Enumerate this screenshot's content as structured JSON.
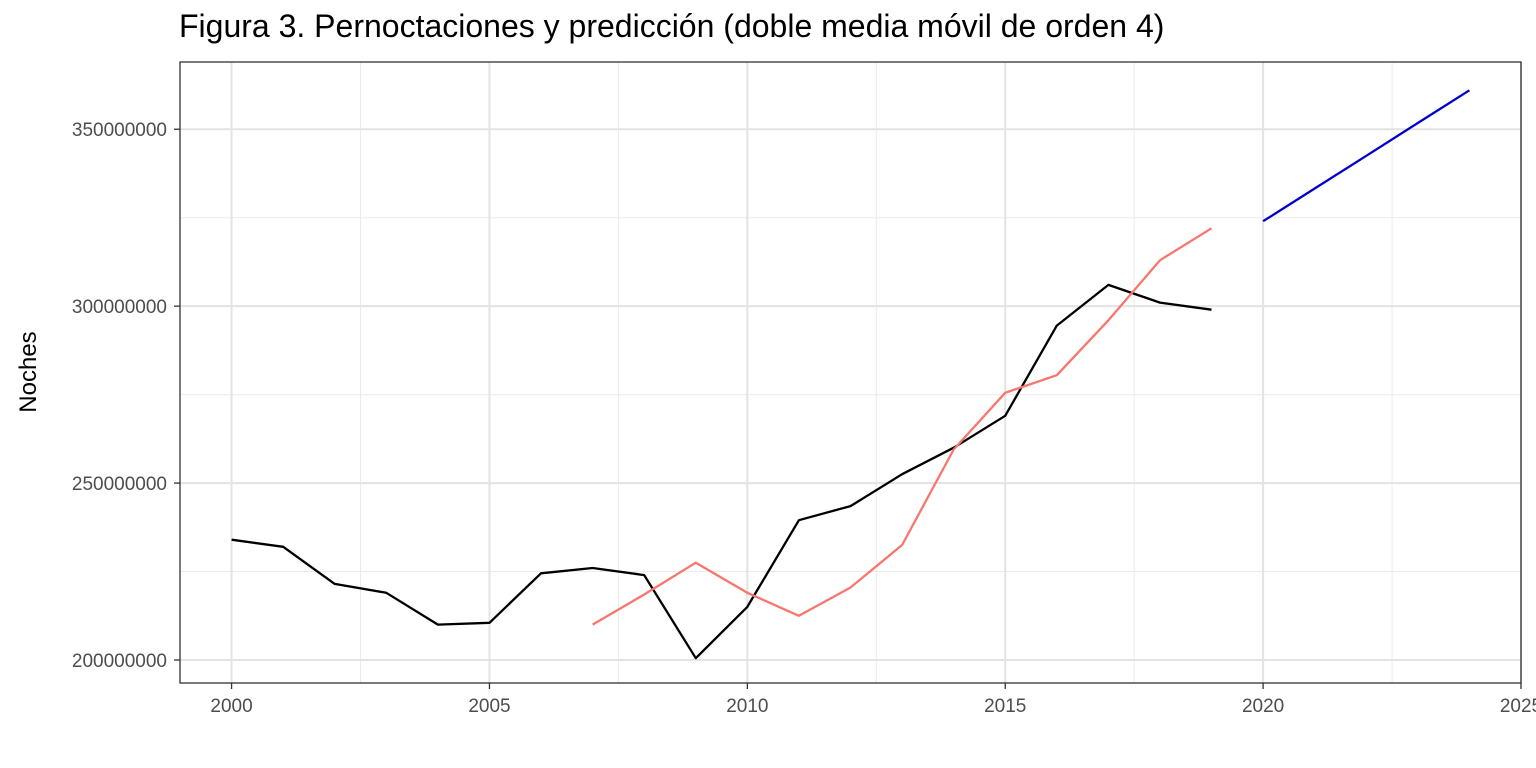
{
  "chart_data": {
    "type": "line",
    "title": "Figura 3. Pernoctaciones y predicción (doble media móvil de orden 4)",
    "xlabel": "",
    "ylabel": "Noches",
    "xlim": [
      1999,
      2025
    ],
    "ylim": [
      193500000,
      369000000
    ],
    "x_ticks": [
      2000,
      2005,
      2010,
      2015,
      2020,
      2025
    ],
    "y_ticks": [
      200000000,
      250000000,
      300000000,
      350000000
    ],
    "x_tick_labels": [
      "2000",
      "2005",
      "2010",
      "2015",
      "2020",
      "2025"
    ],
    "y_tick_labels": [
      "200000000",
      "250000000",
      "300000000",
      "350000000"
    ],
    "grid": true,
    "legend": "none",
    "series": [
      {
        "color": "#000000",
        "x": [
          2000,
          2001,
          2002,
          2003,
          2004,
          2005,
          2006,
          2007,
          2008,
          2009,
          2010,
          2011,
          2012,
          2013,
          2014,
          2015,
          2016,
          2017,
          2018,
          2019
        ],
        "values": [
          234000000,
          232000000,
          221500000,
          219000000,
          210000000,
          210500000,
          224500000,
          226000000,
          224000000,
          200500000,
          215000000,
          239500000,
          243500000,
          252500000,
          260000000,
          269000000,
          294500000,
          306000000,
          301000000,
          299000000
        ]
      },
      {
        "color": "#f8766d",
        "x": [
          2007,
          2008,
          2009,
          2010,
          2011,
          2012,
          2013,
          2014,
          2015,
          2016,
          2017,
          2018,
          2019
        ],
        "values": [
          210000000,
          218500000,
          227500000,
          219000000,
          212500000,
          220500000,
          232500000,
          259500000,
          275500000,
          280500000,
          296000000,
          313000000,
          322000000
        ]
      },
      {
        "color": "#0000cd",
        "x": [
          2020,
          2021,
          2022,
          2023,
          2024
        ],
        "values": [
          324000000,
          333250000,
          342500000,
          351750000,
          361000000
        ]
      }
    ]
  }
}
